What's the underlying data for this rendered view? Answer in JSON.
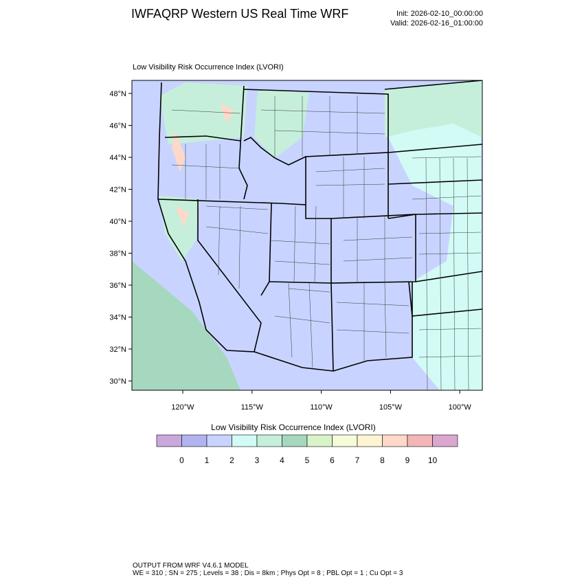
{
  "header": {
    "title": "IWFAQRP Western US Real Time WRF",
    "init": "Init: 2026-02-10_00:00:00",
    "valid": "Valid: 2026-02-16_01:00:00"
  },
  "map": {
    "title": "Low Visibility Risk Occurrence Index   (LVORI)",
    "lat_labels": [
      "48°N",
      "46°N",
      "44°N",
      "42°N",
      "40°N",
      "38°N",
      "36°N",
      "34°N",
      "32°N",
      "30°N"
    ],
    "lon_labels": [
      "120°W",
      "115°W",
      "110°W",
      "105°W",
      "100°W"
    ]
  },
  "colorbar": {
    "title": "Low Visibility Risk Occurrence Index  (LVORI)",
    "levels": [
      0,
      1,
      2,
      3,
      4,
      5,
      6,
      7,
      8,
      9,
      10
    ],
    "colors": [
      "#c9a9dc",
      "#b1b3f1",
      "#c8d4ff",
      "#d2fbf5",
      "#c5efda",
      "#a6d8bf",
      "#d9f3c8",
      "#f6fcd9",
      "#fff4d3",
      "#ffd8c8",
      "#f3b6b6",
      "#dba7d0"
    ]
  },
  "footer": {
    "line1": "OUTPUT FROM WRF V4.6.1 MODEL",
    "line2": "WE = 310 ; SN = 275 ; Levels = 38 ; Dis = 8km ; Phys Opt = 8 ; PBL Opt = 1 ; Cu Opt = 3"
  }
}
